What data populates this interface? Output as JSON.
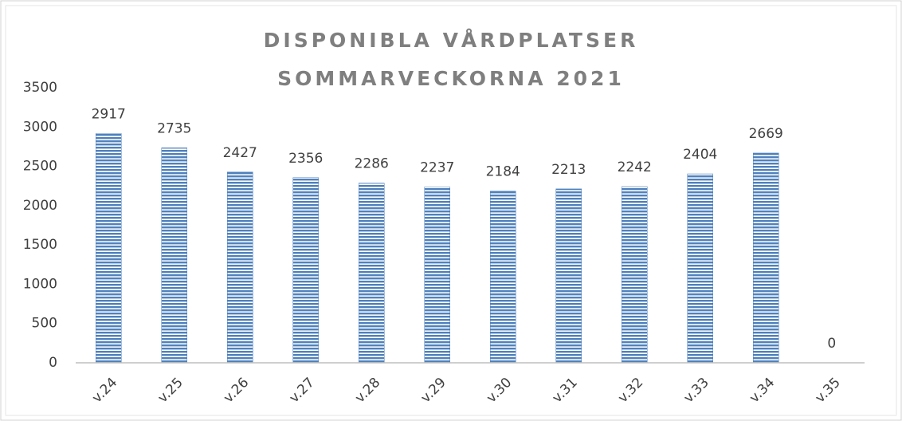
{
  "chart_data": {
    "type": "bar",
    "title": [
      "DISPONIBLA VÅRDPLATSER",
      "SOMMARVECKORNA 2021"
    ],
    "categories": [
      "v.24",
      "v.25",
      "v.26",
      "v.27",
      "v.28",
      "v.29",
      "v.30",
      "v.31",
      "v.32",
      "v.33",
      "v.34",
      "v.35"
    ],
    "values": [
      2917,
      2735,
      2427,
      2356,
      2286,
      2237,
      2184,
      2213,
      2242,
      2404,
      2669,
      0
    ],
    "color": "#4f81bd",
    "ylim": [
      0,
      3500
    ],
    "yticks": [
      0,
      500,
      1000,
      1500,
      2000,
      2500,
      3000,
      3500
    ],
    "grid": false
  }
}
